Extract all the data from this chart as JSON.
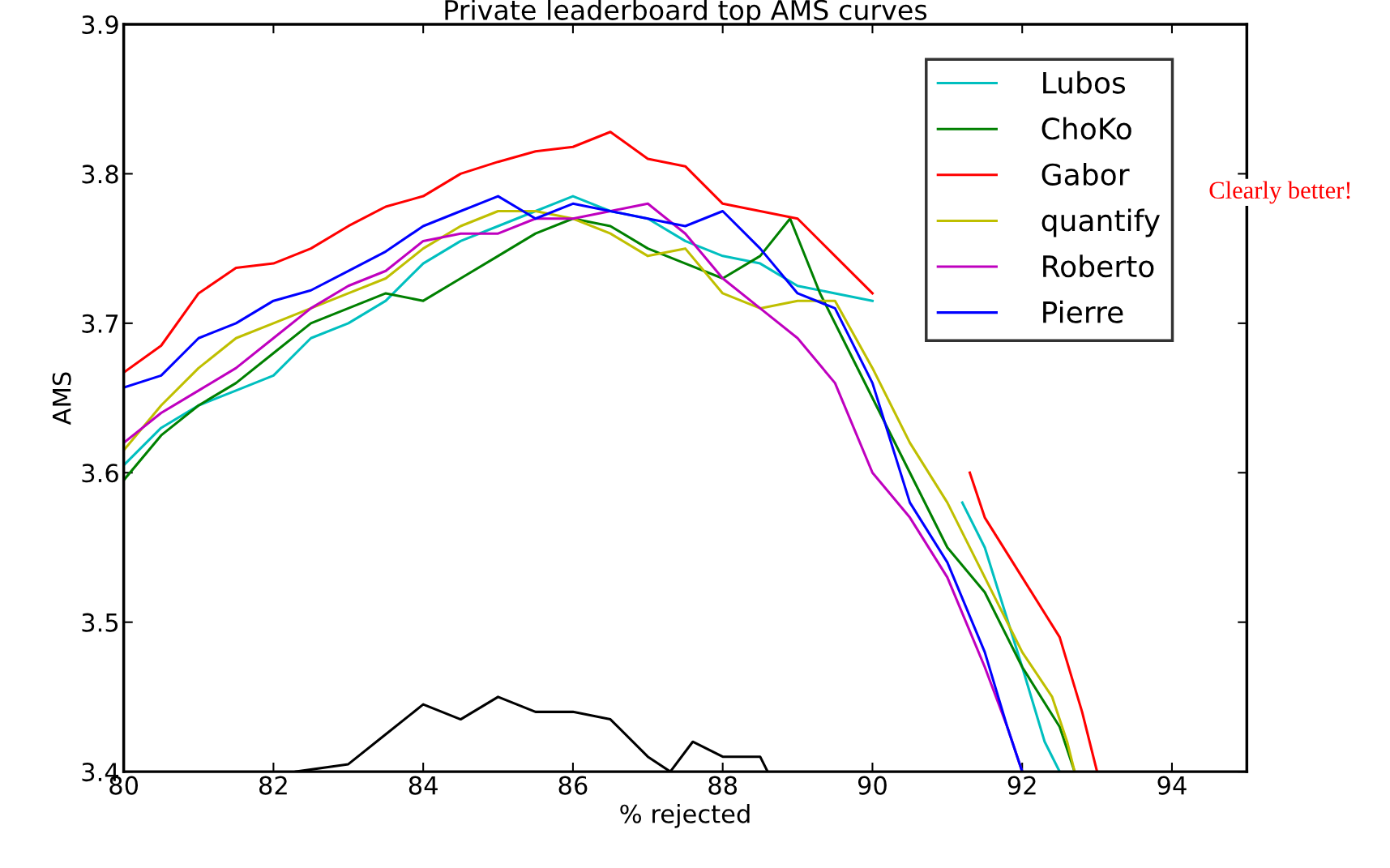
{
  "chart_data": {
    "type": "line",
    "title": "Private leaderboard top AMS curves",
    "xlabel": "% rejected",
    "ylabel": "AMS",
    "xlim": [
      80,
      95
    ],
    "xticks": [
      80,
      82,
      84,
      86,
      88,
      90,
      92,
      94
    ],
    "ylim": [
      3.4,
      3.9
    ],
    "yticks": [
      3.4,
      3.5,
      3.6,
      3.7,
      3.8,
      3.9
    ],
    "grid": false,
    "legend": "top right",
    "marker": "none",
    "line_style": "solid",
    "annotations": [
      "Clearly better!"
    ],
    "series": [
      {
        "name": "Lubos",
        "color": "#00bfbf",
        "x": [
          80,
          80.5,
          81,
          81.5,
          82,
          82.5,
          83,
          83.5,
          84,
          84.5,
          85,
          85.5,
          86,
          86.5,
          87,
          87.5,
          88,
          88.5,
          89,
          89.5,
          90,
          90.5,
          91,
          91.2,
          91.5,
          92,
          92.3,
          92.5
        ],
        "values": [
          3.605,
          3.63,
          3.645,
          3.655,
          3.665,
          3.69,
          3.7,
          3.715,
          3.74,
          3.755,
          3.765,
          3.775,
          3.785,
          3.775,
          3.77,
          3.755,
          3.745,
          3.74,
          3.725,
          3.72,
          3.715,
          null,
          null,
          3.58,
          3.55,
          3.47,
          3.42,
          3.4
        ]
      },
      {
        "name": "ChoKo",
        "color": "#008000",
        "x": [
          80,
          80.5,
          81,
          81.5,
          82,
          82.5,
          83,
          83.5,
          84,
          84.5,
          85,
          85.5,
          86,
          86.5,
          87,
          87.5,
          88,
          88.5,
          88.9,
          89.3,
          89.7,
          90,
          90.5,
          91,
          91.5,
          92,
          92.5,
          92.7
        ],
        "values": [
          3.595,
          3.625,
          3.645,
          3.66,
          3.68,
          3.7,
          3.71,
          3.72,
          3.715,
          3.73,
          3.745,
          3.76,
          3.77,
          3.765,
          3.75,
          3.74,
          3.73,
          3.745,
          3.77,
          3.72,
          3.68,
          3.65,
          3.6,
          3.55,
          3.52,
          3.47,
          3.43,
          3.4
        ]
      },
      {
        "name": "Gabor",
        "color": "#ff0000",
        "x": [
          80,
          80.5,
          81,
          81.5,
          82,
          82.5,
          83,
          83.5,
          84,
          84.5,
          85,
          85.5,
          86,
          86.5,
          87,
          87.5,
          88,
          88.5,
          89,
          89.5,
          90,
          90.5,
          91.3,
          91.5,
          92,
          92.5,
          92.8,
          93
        ],
        "values": [
          3.667,
          3.685,
          3.72,
          3.737,
          3.74,
          3.75,
          3.765,
          3.778,
          3.785,
          3.8,
          3.808,
          3.815,
          3.818,
          3.828,
          3.81,
          3.805,
          3.78,
          3.775,
          3.77,
          3.745,
          3.72,
          null,
          3.6,
          3.57,
          3.53,
          3.49,
          3.44,
          3.4
        ]
      },
      {
        "name": "quantify",
        "color": "#bfbf00",
        "x": [
          80,
          80.5,
          81,
          81.5,
          82,
          82.5,
          83,
          83.5,
          84,
          84.5,
          85,
          85.5,
          86,
          86.5,
          87,
          87.5,
          88,
          88.5,
          89,
          89.5,
          90,
          90.5,
          91,
          91.5,
          92,
          92.4,
          92.6,
          92.7
        ],
        "values": [
          3.615,
          3.645,
          3.67,
          3.69,
          3.7,
          3.71,
          3.72,
          3.73,
          3.75,
          3.765,
          3.775,
          3.775,
          3.77,
          3.76,
          3.745,
          3.75,
          3.72,
          3.71,
          3.715,
          3.715,
          3.67,
          3.62,
          3.58,
          3.53,
          3.48,
          3.45,
          3.42,
          3.4
        ]
      },
      {
        "name": "Roberto",
        "color": "#bf00bf",
        "x": [
          80,
          80.5,
          81,
          81.5,
          82,
          82.5,
          83,
          83.5,
          84,
          84.5,
          85,
          85.5,
          86,
          86.5,
          87,
          87.5,
          88,
          88.5,
          89,
          89.5,
          90,
          90.5,
          91,
          91.5,
          91.8,
          92
        ],
        "values": [
          3.62,
          3.64,
          3.655,
          3.67,
          3.69,
          3.71,
          3.725,
          3.735,
          3.755,
          3.76,
          3.76,
          3.77,
          3.77,
          3.775,
          3.78,
          3.76,
          3.73,
          3.71,
          3.69,
          3.66,
          3.6,
          3.57,
          3.53,
          3.47,
          3.43,
          3.4
        ]
      },
      {
        "name": "Pierre",
        "color": "#0000ff",
        "x": [
          80,
          80.5,
          81,
          81.5,
          82,
          82.5,
          83,
          83.5,
          84,
          84.5,
          85,
          85.5,
          86,
          86.5,
          87,
          87.5,
          88,
          88.5,
          89,
          89.5,
          90,
          90.5,
          91,
          91.5,
          91.8,
          92
        ],
        "values": [
          3.657,
          3.665,
          3.69,
          3.7,
          3.715,
          3.722,
          3.735,
          3.748,
          3.765,
          3.775,
          3.785,
          3.77,
          3.78,
          3.775,
          3.77,
          3.765,
          3.775,
          3.75,
          3.72,
          3.71,
          3.66,
          3.58,
          3.54,
          3.48,
          3.43,
          3.4
        ]
      },
      {
        "color": "#000000",
        "x": [
          82.3,
          83,
          83.5,
          84,
          84.5,
          85,
          85.5,
          86,
          86.5,
          87,
          87.3,
          87.6,
          88,
          88.5,
          88.6
        ],
        "values": [
          3.4,
          3.405,
          3.425,
          3.445,
          3.435,
          3.45,
          3.44,
          3.44,
          3.435,
          3.41,
          3.4,
          3.42,
          3.41,
          3.41,
          3.4
        ]
      }
    ]
  }
}
